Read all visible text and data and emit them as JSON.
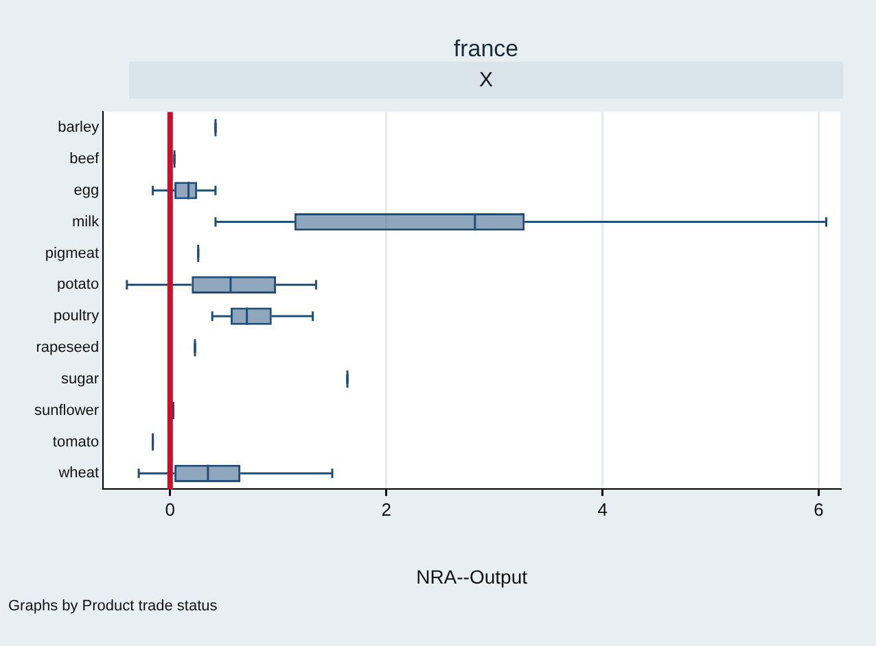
{
  "chart_data": {
    "type": "box",
    "title": "france",
    "subtitle": "X",
    "xlabel": "NRA--Output",
    "orientation": "horizontal",
    "color": "#1f4e79",
    "categories": [
      "barley",
      "beef",
      "egg",
      "milk",
      "pigmeat",
      "potato",
      "poultry",
      "rapeseed",
      "sugar",
      "sunflower",
      "tomato",
      "wheat"
    ],
    "boxes": [
      {
        "low": 0.42,
        "q1": 0.42,
        "median": 0.42,
        "q3": 0.42,
        "high": 0.42
      },
      {
        "low": 0.04,
        "q1": 0.04,
        "median": 0.04,
        "q3": 0.04,
        "high": 0.04
      },
      {
        "low": -0.16,
        "q1": 0.04,
        "median": 0.17,
        "q3": 0.25,
        "high": 0.42
      },
      {
        "low": 0.42,
        "q1": 1.15,
        "median": 2.82,
        "q3": 3.28,
        "high": 6.07
      },
      {
        "low": 0.26,
        "q1": 0.26,
        "median": 0.26,
        "q3": 0.26,
        "high": 0.26
      },
      {
        "low": -0.4,
        "q1": 0.2,
        "median": 0.56,
        "q3": 0.98,
        "high": 1.35
      },
      {
        "low": 0.39,
        "q1": 0.56,
        "median": 0.71,
        "q3": 0.94,
        "high": 1.32
      },
      {
        "low": 0.23,
        "q1": 0.23,
        "median": 0.23,
        "q3": 0.23,
        "high": 0.23
      },
      {
        "low": 1.64,
        "q1": 1.64,
        "median": 1.64,
        "q3": 1.64,
        "high": 1.64
      },
      {
        "low": 0.03,
        "q1": 0.03,
        "median": 0.03,
        "q3": 0.03,
        "high": 0.03
      },
      {
        "low": -0.16,
        "q1": -0.16,
        "median": -0.16,
        "q3": -0.16,
        "high": -0.16
      },
      {
        "low": -0.29,
        "q1": 0.04,
        "median": 0.35,
        "q3": 0.65,
        "high": 1.5
      }
    ],
    "xlim": [
      -0.62,
      6.2
    ],
    "xticks": [
      0,
      2,
      4,
      6
    ],
    "grid": "x",
    "ref_lines": [
      {
        "axis": "x",
        "value": 0,
        "color": "#c8102e"
      }
    ],
    "annotations": [
      "Graphs by Product trade status"
    ]
  }
}
